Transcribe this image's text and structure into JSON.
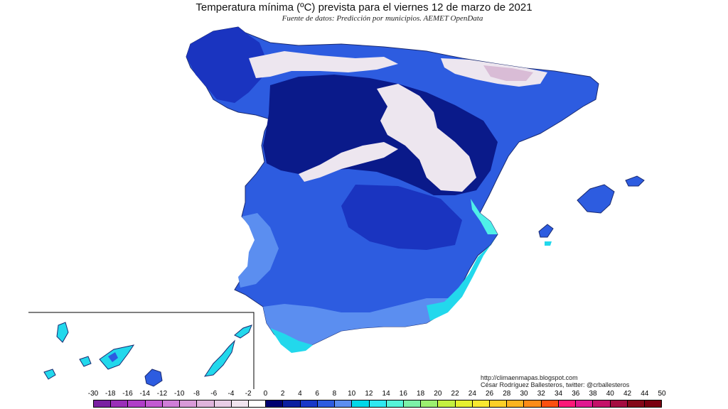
{
  "header": {
    "title": "Temperatura mínima (ºC) prevista para el viernes 12 de marzo de 2021",
    "subtitle": "Fuente de datos: Predicción por municipios. AEMET OpenData"
  },
  "credits": {
    "url": "http://climaenmapas.blogspot.com",
    "author": "César Rodríguez Ballesteros, twitter: @crballesteros"
  },
  "legend": {
    "labels": [
      "-30",
      "-18",
      "-16",
      "-14",
      "-12",
      "-10",
      "-8",
      "-6",
      "-4",
      "-2",
      "0",
      "2",
      "4",
      "6",
      "8",
      "10",
      "12",
      "14",
      "16",
      "18",
      "20",
      "22",
      "24",
      "26",
      "28",
      "30",
      "32",
      "34",
      "36",
      "38",
      "40",
      "42",
      "44",
      "50"
    ],
    "colors": [
      "#7a1fa2",
      "#9a2fb8",
      "#b03ec8",
      "#c25ad2",
      "#cf7ed8",
      "#d89ad8",
      "#dfb4dc",
      "#e8cde6",
      "#f1e4ef",
      "#ffffff",
      "#000070",
      "#0a1fa0",
      "#1838c8",
      "#2d5ce0",
      "#5b8ef0",
      "#00d8e8",
      "#2ee8f0",
      "#55f4d8",
      "#7cf0a8",
      "#9cf070",
      "#c4f040",
      "#e6f030",
      "#f8e830",
      "#fcd028",
      "#fcb420",
      "#fc8c18",
      "#fc5010",
      "#fc1878",
      "#e01890",
      "#c41068",
      "#a40c40",
      "#840818",
      "#7a0010"
    ]
  },
  "map": {
    "regions": [
      "peninsula",
      "balearic-islands",
      "canary-islands"
    ],
    "colors": {
      "very_cold": "#ede6ef",
      "cold_pink": "#d9bcd6",
      "zero_band": "#0a1a8a",
      "two_band": "#1a34c0",
      "four_band": "#2d5ce0",
      "six_band": "#5b8ef0",
      "ten_band": "#22d8ec",
      "twelve_band": "#4ff0e8"
    }
  }
}
